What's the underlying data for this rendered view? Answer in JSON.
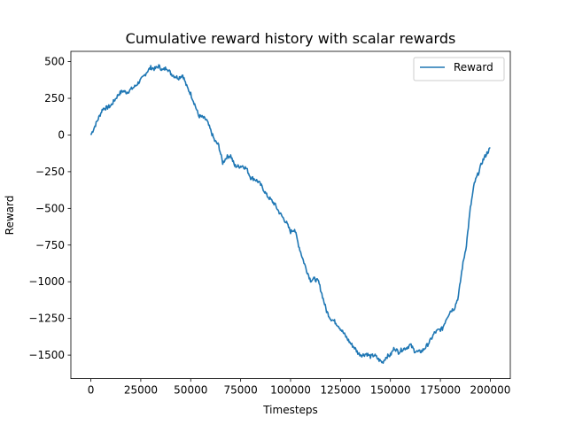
{
  "chart_data": {
    "type": "line",
    "title": "Cumulative reward history with scalar rewards",
    "xlabel": "Timesteps",
    "ylabel": "Reward",
    "xlim": [
      -10000,
      210000
    ],
    "ylim": [
      -1660,
      570
    ],
    "xticks": [
      0,
      25000,
      50000,
      75000,
      100000,
      125000,
      150000,
      175000,
      200000
    ],
    "xtick_labels": [
      "0",
      "25000",
      "50000",
      "75000",
      "100000",
      "125000",
      "150000",
      "175000",
      "200000"
    ],
    "yticks": [
      500,
      250,
      0,
      -250,
      -500,
      -750,
      -1000,
      -1250,
      -1500
    ],
    "ytick_labels": [
      "500",
      "250",
      "0",
      "−250",
      "−500",
      "−750",
      "−1000",
      "−1250",
      "−1500"
    ],
    "grid": false,
    "legend": {
      "position": "top-right",
      "entries": [
        "Reward"
      ]
    },
    "series": [
      {
        "name": "Reward",
        "color": "#1f77b4",
        "x": [
          0,
          2000,
          4000,
          6000,
          8000,
          10000,
          12000,
          14000,
          16000,
          18000,
          20000,
          22000,
          24000,
          26000,
          28000,
          30000,
          32000,
          34000,
          36000,
          38000,
          40000,
          42000,
          44000,
          46000,
          48000,
          50000,
          52000,
          54000,
          56000,
          58000,
          60000,
          62000,
          64000,
          66000,
          68000,
          70000,
          72000,
          74000,
          76000,
          78000,
          80000,
          82000,
          84000,
          86000,
          88000,
          90000,
          92000,
          94000,
          96000,
          98000,
          100000,
          102000,
          104000,
          106000,
          108000,
          110000,
          112000,
          114000,
          116000,
          118000,
          120000,
          122000,
          124000,
          126000,
          128000,
          130000,
          132000,
          134000,
          136000,
          138000,
          140000,
          142000,
          144000,
          146000,
          148000,
          150000,
          152000,
          154000,
          156000,
          158000,
          160000,
          162000,
          164000,
          166000,
          168000,
          170000,
          172000,
          174000,
          176000,
          178000,
          180000,
          182000,
          184000,
          186000,
          188000,
          190000,
          192000,
          194000,
          196000,
          198000,
          200000
        ],
        "values": [
          0,
          60,
          120,
          180,
          185,
          200,
          240,
          280,
          300,
          290,
          310,
          330,
          360,
          390,
          430,
          460,
          450,
          470,
          440,
          460,
          420,
          400,
          390,
          410,
          330,
          280,
          210,
          130,
          120,
          100,
          30,
          -40,
          -70,
          -190,
          -150,
          -140,
          -210,
          -215,
          -210,
          -230,
          -290,
          -300,
          -320,
          -360,
          -410,
          -440,
          -470,
          -520,
          -560,
          -600,
          -660,
          -640,
          -750,
          -840,
          -920,
          -990,
          -980,
          -1000,
          -1100,
          -1200,
          -1250,
          -1270,
          -1300,
          -1340,
          -1380,
          -1420,
          -1450,
          -1490,
          -1500,
          -1490,
          -1510,
          -1500,
          -1530,
          -1550,
          -1510,
          -1500,
          -1450,
          -1480,
          -1460,
          -1450,
          -1430,
          -1470,
          -1480,
          -1470,
          -1440,
          -1400,
          -1350,
          -1330,
          -1320,
          -1250,
          -1200,
          -1180,
          -1100,
          -900,
          -750,
          -500,
          -330,
          -260,
          -180,
          -130,
          -90
        ]
      }
    ]
  }
}
